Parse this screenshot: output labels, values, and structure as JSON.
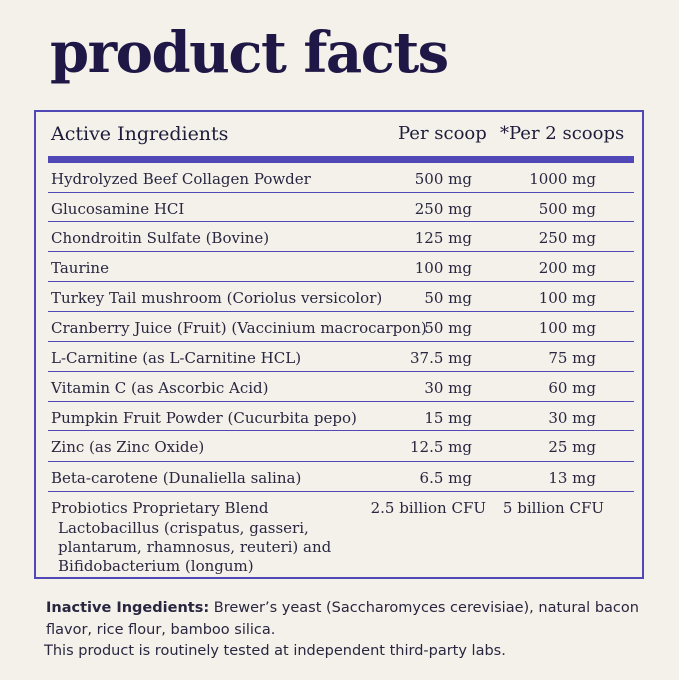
{
  "title": "product facts",
  "table": {
    "headers": {
      "name": "Active Ingredients",
      "per_scoop": "Per scoop",
      "per_2": "*Per 2 scoops"
    },
    "rows": [
      {
        "name": "Hydrolyzed Beef Collagen Powder",
        "per_scoop": "500 mg",
        "per_2": "1000 mg"
      },
      {
        "name": "Glucosamine HCI",
        "per_scoop": "250 mg",
        "per_2": "500 mg"
      },
      {
        "name": "Chondroitin Sulfate (Bovine)",
        "per_scoop": "125 mg",
        "per_2": "250 mg"
      },
      {
        "name": "Taurine",
        "per_scoop": "100 mg",
        "per_2": "200 mg"
      },
      {
        "name": "Turkey Tail mushroom (Coriolus versicolor)",
        "per_scoop": "50 mg",
        "per_2": "100 mg"
      },
      {
        "name": "Cranberry Juice (Fruit) (Vaccinium macrocarpon)",
        "per_scoop": "50 mg",
        "per_2": "100 mg"
      },
      {
        "name": "L-Carnitine (as L-Carnitine HCL)",
        "per_scoop": "37.5 mg",
        "per_2": "75 mg"
      },
      {
        "name": "Vitamin C (as Ascorbic Acid)",
        "per_scoop": "30 mg",
        "per_2": "60 mg"
      },
      {
        "name": "Pumpkin Fruit Powder (Cucurbita pepo)",
        "per_scoop": "15 mg",
        "per_2": "30 mg"
      },
      {
        "name": "Zinc (as Zinc Oxide)",
        "per_scoop": "12.5 mg",
        "per_2": "25 mg"
      },
      {
        "name": "Beta-carotene (Dunaliella salina)",
        "per_scoop": "6.5 mg",
        "per_2": "13 mg"
      },
      {
        "name": "Probiotics Proprietary Blend",
        "per_scoop": "2.5 billion CFU",
        "per_2": "5 billion CFU",
        "detail_lines": [
          "Lactobacillus (crispatus, gasseri,",
          "plantarum, rhamnosus, reuteri) and",
          "Bifidobacterium (longum)"
        ]
      }
    ]
  },
  "footer": {
    "inactive_label": "Inactive Ingedients:",
    "inactive_text": " Brewer’s yeast (Saccharomyces cerevisiae), natural bacon flavor, rice flour, bamboo silica.",
    "note": "This product is routinely tested at independent third-party labs."
  }
}
